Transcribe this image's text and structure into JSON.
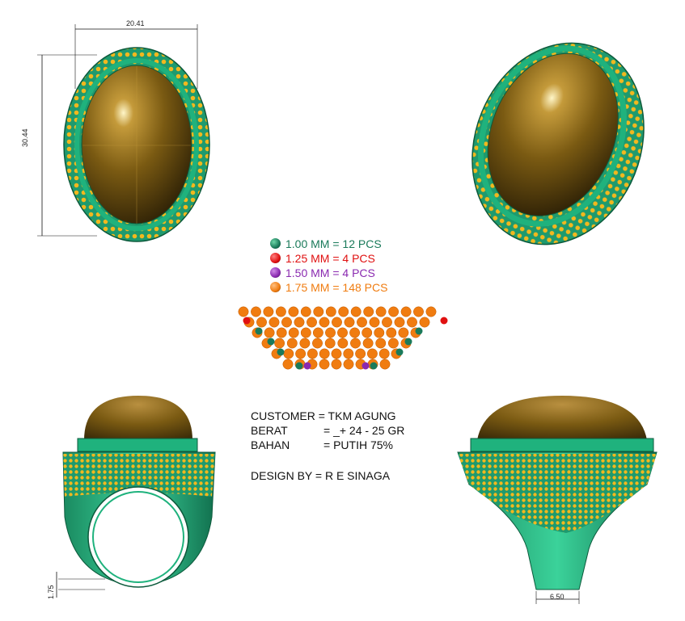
{
  "dimensions": {
    "width_top": "20.41",
    "height_side": "30.44",
    "thickness": "1.75",
    "shank_width": "6.50"
  },
  "legend": [
    {
      "label": "1.00 MM = 12 PCS",
      "color": "#1a7a5a"
    },
    {
      "label": "1.25 MM = 4 PCS",
      "color": "#e01010"
    },
    {
      "label": "1.50 MM = 4 PCS",
      "color": "#8a2ab0"
    },
    {
      "label": "1.75 MM = 148 PCS",
      "color": "#f07c10"
    }
  ],
  "info": {
    "customer": "CUSTOMER = TKM AGUNG",
    "weight_label": "BERAT",
    "weight_value": "= _+ 24 - 25 GR",
    "material_label": "BAHAN",
    "material_value": "= PUTIH 75%",
    "designer": "DESIGN BY = R E SINAGA"
  },
  "colors": {
    "metal": "#1e9a6e",
    "stone": "#7a5a12",
    "diamond": "#f2b81e"
  }
}
